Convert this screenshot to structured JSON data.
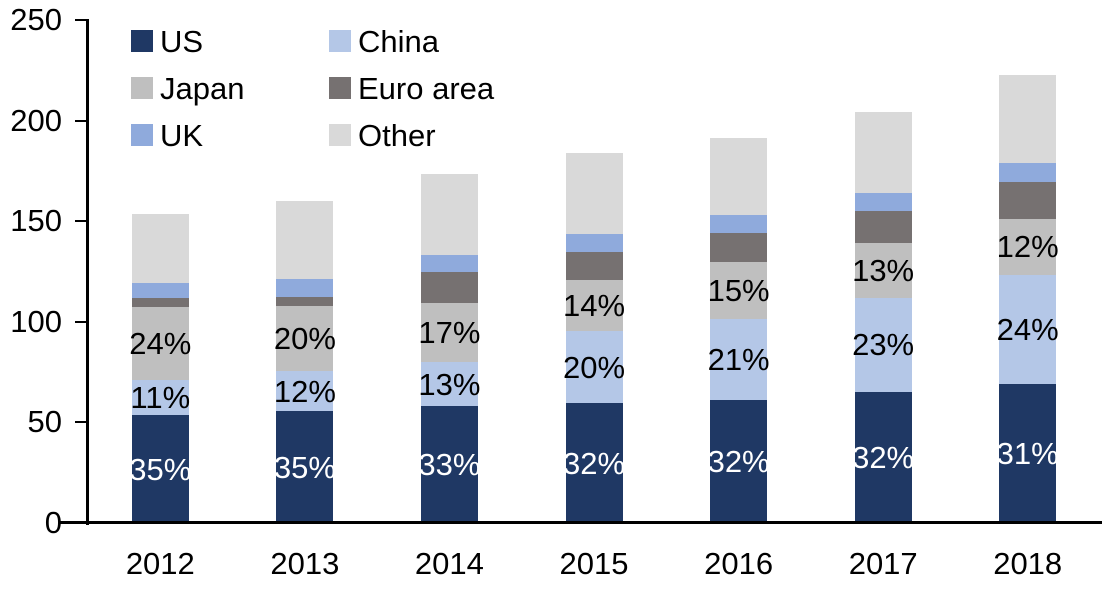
{
  "chart_data": {
    "type": "bar",
    "stacked": true,
    "title": "",
    "xlabel": "",
    "ylabel": "",
    "categories": [
      "2012",
      "2013",
      "2014",
      "2015",
      "2016",
      "2017",
      "2018"
    ],
    "stack_order_bottom_to_top": [
      "US",
      "China",
      "Japan",
      "Euro area",
      "UK",
      "Other"
    ],
    "series": [
      {
        "name": "US",
        "color": "#1f3864",
        "values": [
          53.5,
          55.5,
          58.0,
          59.5,
          61.0,
          65.0,
          69.0
        ],
        "labels": [
          "35%",
          "35%",
          "33%",
          "32%",
          "32%",
          "32%",
          "31%"
        ],
        "label_color": "#ffffff"
      },
      {
        "name": "China",
        "color": "#b4c7e7",
        "values": [
          17.5,
          20.0,
          22.0,
          36.0,
          40.5,
          47.0,
          54.5
        ],
        "labels": [
          "11%",
          "12%",
          "13%",
          "20%",
          "21%",
          "23%",
          "24%"
        ],
        "label_color": "#000000"
      },
      {
        "name": "Japan",
        "color": "#bfbfbf",
        "values": [
          36.5,
          32.5,
          29.5,
          25.5,
          28.5,
          27.0,
          27.5
        ],
        "labels": [
          "24%",
          "20%",
          "17%",
          "14%",
          "15%",
          "13%",
          "12%"
        ],
        "label_color": "#000000"
      },
      {
        "name": "Euro area",
        "color": "#767171",
        "values": [
          4.5,
          4.5,
          15.0,
          13.5,
          14.0,
          16.0,
          18.5
        ],
        "labels": null,
        "label_color": null
      },
      {
        "name": "UK",
        "color": "#8faadc",
        "values": [
          7.5,
          9.0,
          8.5,
          9.0,
          9.0,
          9.0,
          9.5
        ],
        "labels": null,
        "label_color": null
      },
      {
        "name": "Other",
        "color": "#d9d9d9",
        "values": [
          34.0,
          38.5,
          40.5,
          40.5,
          38.5,
          40.5,
          43.5
        ],
        "labels": null,
        "label_color": null
      }
    ],
    "bar_totals": [
      153.5,
      160,
      173.5,
      184,
      191.5,
      204.5,
      222.5
    ],
    "y_axis": {
      "min": 0,
      "max": 250,
      "tick_step": 50,
      "ticks": [
        250,
        200,
        150,
        100,
        50,
        0
      ]
    },
    "legend": {
      "position": "top-left",
      "columns": 2,
      "rows": [
        [
          "US",
          "China"
        ],
        [
          "Japan",
          "Euro area"
        ],
        [
          "UK",
          "Other"
        ]
      ]
    },
    "grid": false,
    "axis_color": "#000000",
    "background": "#ffffff"
  }
}
